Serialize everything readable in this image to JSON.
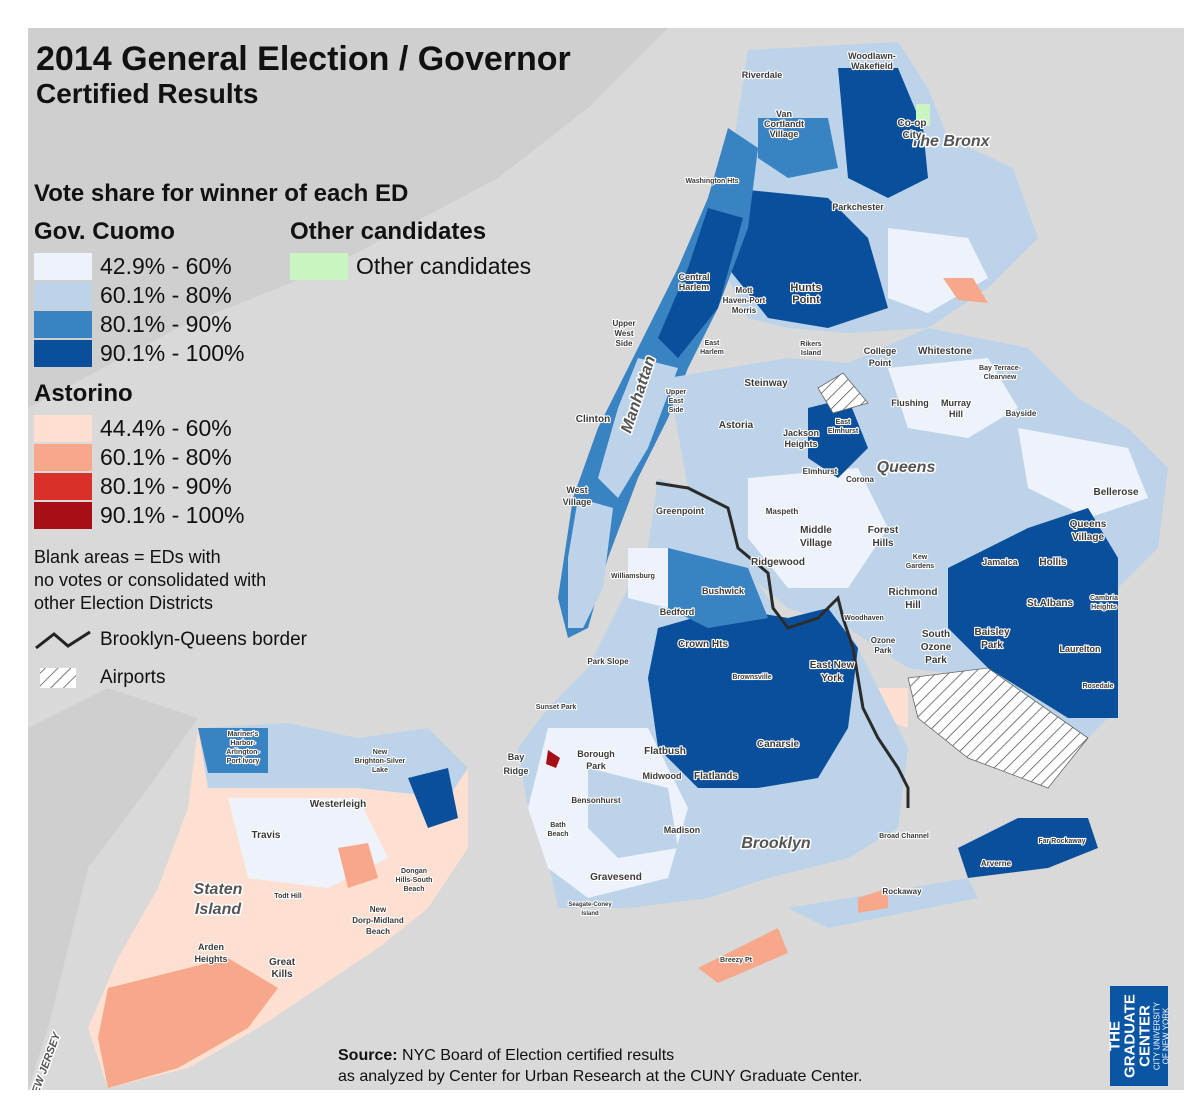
{
  "title": {
    "line1": "2014 General Election / Governor",
    "line2": "Certified Results"
  },
  "legend": {
    "heading": "Vote share for winner of each ED",
    "cuomo": {
      "label": "Gov. Cuomo",
      "ranges": [
        {
          "label": "42.9% - 60%",
          "color": "#eef3fb"
        },
        {
          "label": "60.1% - 80%",
          "color": "#bcd3e9"
        },
        {
          "label": "80.1% - 90%",
          "color": "#3a83c3"
        },
        {
          "label": "90.1% - 100%",
          "color": "#0a4f9c"
        }
      ]
    },
    "other": {
      "label": "Other candidates",
      "ranges": [
        {
          "label": "Other candidates",
          "color": "#c8f5c0"
        }
      ]
    },
    "astorino": {
      "label": "Astorino",
      "ranges": [
        {
          "label": "44.4% - 60%",
          "color": "#fde0d2"
        },
        {
          "label": "60.1% - 80%",
          "color": "#f7a88a"
        },
        {
          "label": "80.1% - 90%",
          "color": "#d9312a"
        },
        {
          "label": "90.1% - 100%",
          "color": "#a50f15"
        }
      ]
    },
    "blank_note": [
      "Blank areas = EDs with",
      "no votes or consolidated with",
      "other Election Districts"
    ],
    "border_label": "Brooklyn-Queens border",
    "airports_label": "Airports"
  },
  "source": {
    "bold": "Source:",
    "line1": " NYC Board of Election certified results",
    "line2": "as analyzed by Center for Urban Research at the CUNY Graduate Center."
  },
  "logo": {
    "line1": "THE",
    "line2": "GRADUATE",
    "line3": "CENTER",
    "line4": "CITY UNIVERSITY",
    "line5": "OF NEW YORK"
  },
  "borough_labels": {
    "bronx": "The Bronx",
    "manhattan": "Manhattan",
    "queens": "Queens",
    "brooklyn": "Brooklyn",
    "staten_island_1": "Staten",
    "staten_island_2": "Island",
    "new_jersey": "NEW JERSEY"
  },
  "place_labels": {
    "riverdale": "Riverdale",
    "woodlawn_1": "Woodlawn-",
    "woodlawn_2": "Wakefield",
    "van_cortlandt_1": "Van",
    "van_cortlandt_2": "Cortlandt",
    "van_cortlandt_3": "Village",
    "co_op_1": "Co-op",
    "co_op_2": "City",
    "washington_hts": "Washington Hts",
    "parkchester": "Parkchester",
    "central_harlem_1": "Central",
    "central_harlem_2": "Harlem",
    "hunts_point_1": "Hunts",
    "hunts_point_2": "Point",
    "mott_haven_1": "Mott",
    "mott_haven_2": "Haven-Port",
    "mott_haven_3": "Morris",
    "upper_west_1": "Upper",
    "upper_west_2": "West",
    "upper_west_3": "Side",
    "east_harlem_1": "East",
    "east_harlem_2": "Harlem",
    "rikers_1": "Rikers",
    "rikers_2": "Island",
    "college_point_1": "College",
    "college_point_2": "Point",
    "whitestone": "Whitestone",
    "bay_terrace_1": "Bay Terrace-",
    "bay_terrace_2": "Clearview",
    "steinway": "Steinway",
    "upper_east_1": "Upper",
    "upper_east_2": "East",
    "upper_east_3": "Side",
    "flushing": "Flushing",
    "murray_hill_1": "Murray",
    "murray_hill_2": "Hill",
    "bayside": "Bayside",
    "clinton": "Clinton",
    "astoria": "Astoria",
    "jackson_heights_1": "Jackson",
    "jackson_heights_2": "Heights",
    "east_elmhurst_1": "East",
    "east_elmhurst_2": "Elmhurst",
    "elmhurst": "Elmhurst",
    "corona": "Corona",
    "west_village_1": "West",
    "west_village_2": "Village",
    "bellerose": "Bellerose",
    "greenpoint": "Greenpoint",
    "maspeth": "Maspeth",
    "middle_village_1": "Middle",
    "middle_village_2": "Village",
    "forest_hills_1": "Forest",
    "forest_hills_2": "Hills",
    "queens_village_1": "Queens",
    "queens_village_2": "Village",
    "kew_gardens_1": "Kew",
    "kew_gardens_2": "Gardens",
    "jamaica": "Jamaica",
    "hollis": "Hollis",
    "ridgewood": "Ridgewood",
    "williamsburg": "Williamsburg",
    "bushwick": "Bushwick",
    "richmond_hill_1": "Richmond",
    "richmond_hill_2": "Hill",
    "st_albans": "St.Albans",
    "cambria_1": "Cambria",
    "cambria_2": "Heights",
    "bedford": "Bedford",
    "woodhaven": "Woodhaven",
    "ozone_park_1": "Ozone",
    "ozone_park_2": "Park",
    "south_ozone_1": "South",
    "south_ozone_2": "Ozone",
    "south_ozone_3": "Park",
    "baisley_1": "Baisley",
    "baisley_2": "Park",
    "crown_hts": "Crown Hts",
    "laurelton": "Laurelton",
    "park_slope": "Park Slope",
    "east_new_york_1": "East New",
    "east_new_york_2": "York",
    "brownsville": "Brownsville",
    "rosedale": "Rosedale",
    "mariners_1": "Mariner's",
    "mariners_2": "Harbor-",
    "mariners_3": "Arlington-",
    "mariners_4": "Port Ivory",
    "new_brighton_1": "New",
    "new_brighton_2": "Brighton-Silver",
    "new_brighton_3": "Lake",
    "sunset_park": "Sunset Park",
    "canarsie": "Canarsie",
    "bay_ridge_1": "Bay",
    "bay_ridge_2": "Ridge",
    "borough_park_1": "Borough",
    "borough_park_2": "Park",
    "flatbush": "Flatbush",
    "westerleigh": "Westerleigh",
    "midwood": "Midwood",
    "flatlands": "Flatlands",
    "bensonhurst": "Bensonhurst",
    "travis": "Travis",
    "bath_beach_1": "Bath",
    "bath_beach_2": "Beach",
    "madison": "Madison",
    "broad_channel": "Broad Channel",
    "far_rockaway": "Far Rockaway",
    "arverne": "Arverne",
    "dongan_1": "Dongan",
    "dongan_2": "Hills-South",
    "dongan_3": "Beach",
    "todt_hill": "Todt Hill",
    "gravesend": "Gravesend",
    "seagate_1": "Seagate-Coney",
    "seagate_2": "Island",
    "rockaway": "Rockaway",
    "new_dorp_1": "New",
    "new_dorp_2": "Dorp-Midland",
    "new_dorp_3": "Beach",
    "arden_1": "Arden",
    "arden_2": "Heights",
    "great_kills_1": "Great",
    "great_kills_2": "Kills",
    "breezy_pt": "Breezy Pt"
  }
}
